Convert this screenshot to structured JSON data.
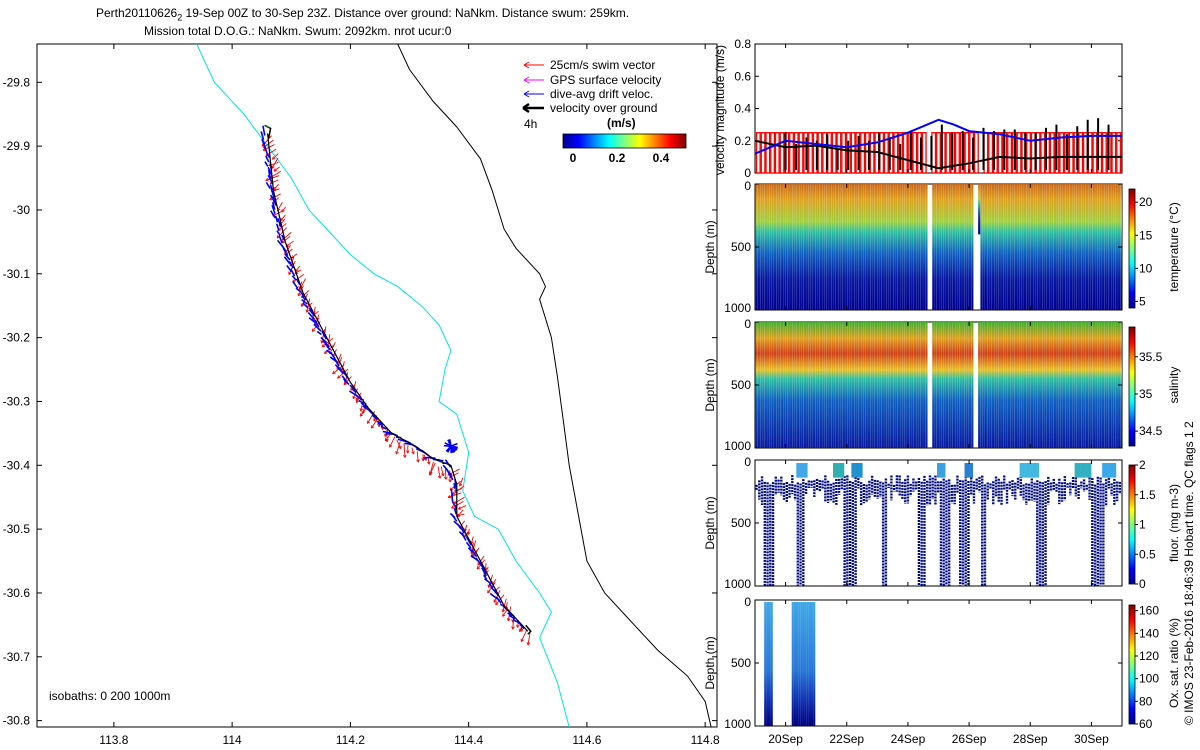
{
  "title": {
    "line1_prefix": "Perth20110626",
    "line1_sub": "2",
    "line1_rest": " 19-Sep 00Z to 30-Sep 23Z. Distance over ground: NaNkm. Distance swum: 259km.",
    "line2": "Mission total D.O.G.: NaNkm. Swum: 2092km. nrot ucur:0"
  },
  "side_note": "© IMOS 23-Feb-2016 18:46:39 Hobart time. QC flags 1  2",
  "colors": {
    "swim": "#ff0000",
    "gps": "#ff00ff",
    "drift": "#0000ff",
    "ground": "#000000",
    "isobath_200": "#00e5ee",
    "isobath_1000": "#000000",
    "bar_red": "#ff0000"
  },
  "chart_data": [
    {
      "type": "line",
      "name": "map",
      "xlim": [
        113.67,
        114.82
      ],
      "ylim": [
        -30.81,
        -29.74
      ],
      "xticks": [
        113.8,
        114,
        114.2,
        114.4,
        114.6,
        114.8
      ],
      "yticks": [
        -29.8,
        -29.9,
        -30,
        -30.1,
        -30.2,
        -30.3,
        -30.4,
        -30.5,
        -30.6,
        -30.7,
        -30.8
      ],
      "ytick_labels": [
        "-29.8",
        "-29.9",
        "-30",
        "-30.1",
        "-30.2",
        "-30.3",
        "-30.4",
        "-30.5",
        "-30.6",
        "-30.7",
        "-30.8"
      ],
      "legend": {
        "placement": "top-right",
        "entries": [
          "25cm/s swim vector",
          "GPS surface velocity",
          "dive-avg drift veloc.",
          "velocity over ground"
        ],
        "time_label": "4h",
        "colorbar_title": "(m/s)",
        "colorbar_ticks": [
          "0",
          "0.2",
          "0.4"
        ]
      },
      "isobath_label": "isobaths: 0   200  1000m",
      "series": [
        {
          "name": "200m isobath",
          "x": [
            113.94,
            113.97,
            114.02,
            114.06,
            114.1,
            114.13,
            114.17,
            114.2,
            114.24,
            114.28,
            114.32,
            114.35,
            114.37,
            114.36,
            114.35,
            114.38,
            114.4,
            114.39,
            114.41,
            114.45,
            114.48,
            114.52,
            114.54,
            114.52,
            114.55,
            114.57
          ],
          "y": [
            -29.74,
            -29.8,
            -29.85,
            -29.9,
            -29.95,
            -30.0,
            -30.04,
            -30.07,
            -30.1,
            -30.12,
            -30.15,
            -30.18,
            -30.22,
            -30.25,
            -30.3,
            -30.32,
            -30.38,
            -30.44,
            -30.48,
            -30.5,
            -30.55,
            -30.6,
            -30.63,
            -30.67,
            -30.74,
            -30.81
          ]
        },
        {
          "name": "1000m isobath",
          "x": [
            114.28,
            114.3,
            114.34,
            114.38,
            114.42,
            114.44,
            114.46,
            114.48,
            114.52,
            114.53,
            114.52,
            114.54,
            114.55,
            114.56,
            114.57,
            114.58,
            114.59,
            114.6,
            114.63,
            114.67,
            114.72,
            114.77,
            114.8,
            114.81
          ],
          "y": [
            -29.74,
            -29.78,
            -29.83,
            -29.87,
            -29.92,
            -29.97,
            -30.03,
            -30.06,
            -30.1,
            -30.12,
            -30.14,
            -30.2,
            -30.26,
            -30.33,
            -30.4,
            -30.45,
            -30.5,
            -30.55,
            -30.6,
            -30.64,
            -30.69,
            -30.73,
            -30.77,
            -30.81
          ]
        },
        {
          "name": "glider track",
          "x": [
            114.06,
            114.07,
            114.09,
            114.12,
            114.16,
            114.2,
            114.23,
            114.27,
            114.31,
            114.34,
            114.37,
            114.38,
            114.38,
            114.42,
            114.46,
            114.5
          ],
          "y": [
            -29.88,
            -29.97,
            -30.05,
            -30.13,
            -30.2,
            -30.27,
            -30.31,
            -30.35,
            -30.37,
            -30.39,
            -30.4,
            -30.43,
            -30.48,
            -30.55,
            -30.62,
            -30.66
          ]
        }
      ]
    },
    {
      "type": "bar",
      "name": "velocity",
      "ylabel": "velocity magnitude (m/s)",
      "ylim": [
        0,
        0.8
      ],
      "yticks": [
        0,
        0.2,
        0.4,
        0.6,
        0.8
      ],
      "xlim": [
        19,
        31
      ],
      "bar_value": 0.25,
      "drift_line": {
        "x": [
          19,
          20,
          21,
          22,
          23,
          24,
          25,
          25.5,
          26,
          27,
          28,
          29,
          30,
          31
        ],
        "y": [
          0.12,
          0.2,
          0.18,
          0.16,
          0.19,
          0.25,
          0.33,
          0.3,
          0.26,
          0.24,
          0.2,
          0.22,
          0.23,
          0.23
        ]
      },
      "ground_line": {
        "x": [
          19,
          20,
          21,
          22,
          23,
          24,
          25,
          26,
          27,
          28,
          29,
          30,
          31
        ],
        "y": [
          0.2,
          0.16,
          0.17,
          0.14,
          0.13,
          0.08,
          0.03,
          0.06,
          0.1,
          0.09,
          0.1,
          0.1,
          0.1
        ]
      },
      "spikes": [
        0.25,
        0.18,
        0.22,
        0.2,
        0.24,
        0.15,
        0.2,
        0.23,
        0.2,
        0.25,
        0.22,
        0.18,
        0.26,
        0.22,
        0.23,
        0.3,
        0.25,
        0.26,
        0.22,
        0.28,
        0.26,
        0.27,
        0.27,
        0.25,
        0.25,
        0.28,
        0.3,
        0.24,
        0.29,
        0.33,
        0.34,
        0.3
      ]
    },
    {
      "type": "heatmap",
      "name": "temperature",
      "ylabel": "Depth (m)",
      "cblabel": "temperature (°C)",
      "cb_ticks": [
        "5",
        "10",
        "15",
        "20"
      ],
      "clim": [
        4,
        22
      ],
      "yticks": [
        "0",
        "500",
        "1000"
      ]
    },
    {
      "type": "heatmap",
      "name": "salinity",
      "ylabel": "Depth (m)",
      "cblabel": "salinity",
      "cb_ticks": [
        "34.5",
        "35",
        "35.5"
      ],
      "clim": [
        34.3,
        35.9
      ],
      "yticks": [
        "0",
        "500",
        "1000"
      ]
    },
    {
      "type": "heatmap",
      "name": "fluorescence",
      "ylabel": "Depth (m)",
      "cblabel": "fluor. (mg m-3)",
      "cb_ticks": [
        "0",
        "0.5",
        "1",
        "1.5",
        "2"
      ],
      "clim": [
        0,
        2
      ],
      "yticks": [
        "0",
        "500",
        "1000"
      ]
    },
    {
      "type": "heatmap",
      "name": "oxygen",
      "ylabel": "Depth (m)",
      "cblabel": "Ox. sat. ratio (%)",
      "cb_ticks": [
        "60",
        "80",
        "100",
        "120",
        "140",
        "160"
      ],
      "clim": [
        60,
        165
      ],
      "yticks": [
        "0",
        "500",
        "1000"
      ],
      "xticks": [
        "20Sep",
        "22Sep",
        "24Sep",
        "26Sep",
        "28Sep",
        "30Sep"
      ],
      "xtick_days": [
        20,
        22,
        24,
        26,
        28,
        30
      ]
    }
  ]
}
